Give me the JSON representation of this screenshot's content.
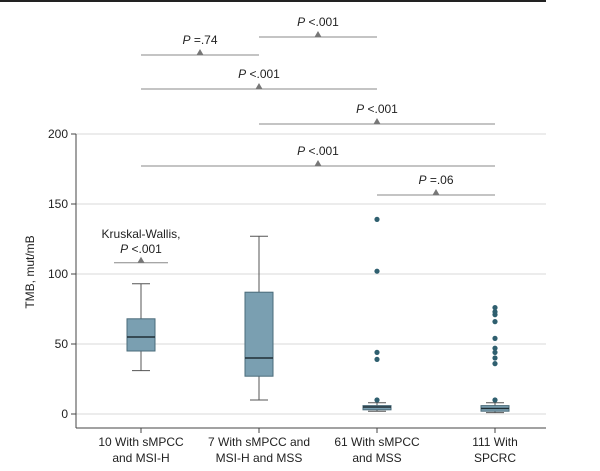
{
  "chart_data": {
    "type": "boxplot",
    "title": "",
    "xlabel": "",
    "ylabel": "TMB, mut/mB",
    "ylim": [
      -10,
      200
    ],
    "yticks": [
      0,
      50,
      100,
      150,
      200
    ],
    "grid": "horizontal",
    "colors": {
      "box": "#7a9fb1",
      "outlier": "#2f5f6f",
      "line": "#555555",
      "grid": "#d9d9d9",
      "marker": "#777777"
    },
    "categories": [
      {
        "line1": "10 With sMPCC",
        "line2": "and MSI-H"
      },
      {
        "line1": "7 With sMPCC and",
        "line2": "MSI-H and MSS"
      },
      {
        "line1": "61 With sMPCC",
        "line2": "and MSS"
      },
      {
        "line1": "111 With",
        "line2": "SPCRC"
      }
    ],
    "boxes": [
      {
        "whisker_low": 31,
        "q1": 45,
        "median": 55,
        "q3": 68,
        "whisker_high": 93,
        "outliers": []
      },
      {
        "whisker_low": 10,
        "q1": 27,
        "median": 40,
        "q3": 87,
        "whisker_high": 127,
        "outliers": []
      },
      {
        "whisker_low": 2,
        "q1": 3,
        "median": 5,
        "q3": 6,
        "whisker_high": 8,
        "outliers": [
          10,
          39,
          44,
          102,
          139
        ]
      },
      {
        "whisker_low": 1,
        "q1": 2,
        "median": 4,
        "q3": 6,
        "whisker_high": 8,
        "outliers": [
          10,
          36,
          40,
          44,
          47,
          54,
          66,
          71,
          73,
          76
        ]
      }
    ],
    "comparisons": [
      {
        "from": 2,
        "to": 3,
        "prefix": "P",
        "text": " <.001",
        "level": 0
      },
      {
        "from": 1,
        "to": 2,
        "prefix": "P",
        "text": " =.74",
        "level": 1
      },
      {
        "from": 1,
        "to": 3,
        "prefix": "P",
        "text": " <.001",
        "level": 2
      },
      {
        "from": 2,
        "to": 4,
        "prefix": "P",
        "text": " <.001",
        "level": 3
      },
      {
        "from": 1,
        "to": 4,
        "prefix": "P",
        "text": " <.001",
        "level": 4
      },
      {
        "from": 3,
        "to": 4,
        "prefix": "P",
        "text": " =.06",
        "level": 5
      }
    ],
    "kruskal": {
      "title": "Kruskal-Wallis,",
      "prefix": "P",
      "text": " <.001",
      "y_value": 108
    }
  }
}
